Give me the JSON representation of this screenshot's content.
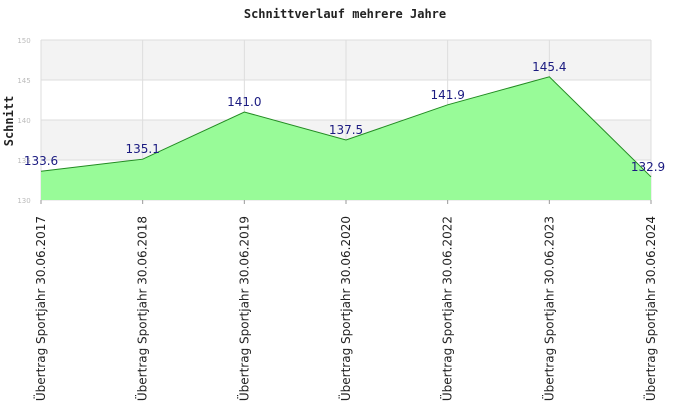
{
  "chart_data": {
    "type": "area",
    "title": "Schnittverlauf mehrere Jahre",
    "ylabel": "Schnitt",
    "xlabel": "",
    "ylim": [
      130,
      150
    ],
    "yticks": [
      "130",
      "135",
      "140",
      "145",
      "150"
    ],
    "categories": [
      "Übertrag Sportjahr 30.06.2017",
      "Übertrag Sportjahr 30.06.2018",
      "Übertrag Sportjahr 30.06.2019",
      "Übertrag Sportjahr 30.06.2020",
      "Übertrag Sportjahr 30.06.2022",
      "Übertrag Sportjahr 30.06.2023",
      "Übertrag Sportjahr 30.06.2024"
    ],
    "values": [
      133.6,
      135.1,
      141.0,
      137.5,
      141.9,
      145.4,
      132.9
    ],
    "data_labels": [
      "133.6",
      "135.1",
      "141.0",
      "137.5",
      "141.9",
      "145.4",
      "132.9"
    ],
    "grid": true,
    "legend": "none",
    "colors": {
      "fill": "#98fb98",
      "line": "#228b22",
      "band_light": "#f3f3f3",
      "band_white": "#ffffff",
      "data_label": "#1a1a80"
    }
  }
}
